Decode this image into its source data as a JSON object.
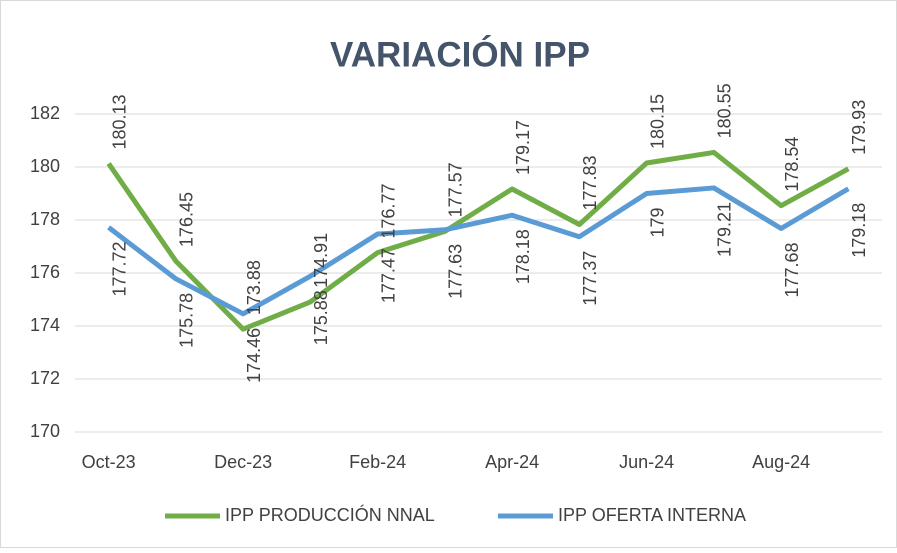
{
  "chart_data": {
    "type": "line",
    "title": "VARIACIÓN IPP",
    "categories": [
      "Oct-23",
      null,
      "Dec-23",
      null,
      "Feb-24",
      null,
      "Apr-24",
      null,
      "Jun-24",
      null,
      "Aug-24",
      null
    ],
    "series": [
      {
        "name": "IPP PRODUCCIÓN NNAL",
        "color": "#70ad47",
        "values": [
          180.13,
          176.45,
          173.88,
          174.91,
          176.77,
          177.57,
          179.17,
          177.83,
          180.15,
          180.55,
          178.54,
          179.93
        ]
      },
      {
        "name": "IPP OFERTA INTERNA",
        "color": "#5b9bd5",
        "values": [
          177.72,
          175.78,
          174.46,
          175.88,
          177.47,
          177.63,
          178.18,
          177.37,
          179,
          179.21,
          177.68,
          179.18
        ]
      }
    ],
    "ylim": [
      170,
      182
    ],
    "yticks": [
      170,
      172,
      174,
      176,
      178,
      180,
      182
    ],
    "grid": true,
    "legend": "bottom"
  }
}
